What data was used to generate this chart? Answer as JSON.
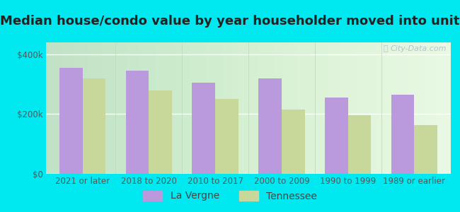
{
  "title": "Median house/condo value by year householder moved into unit",
  "categories": [
    "2021 or later",
    "2018 to 2020",
    "2010 to 2017",
    "2000 to 2009",
    "1990 to 1999",
    "1989 or earlier"
  ],
  "la_vergne": [
    355000,
    345000,
    305000,
    320000,
    255000,
    265000
  ],
  "tennessee": [
    320000,
    280000,
    250000,
    215000,
    197000,
    163000
  ],
  "bar_color_lavergne": "#bb99dd",
  "bar_color_tennessee": "#c8d89a",
  "background_color": "#00e8f0",
  "ytick_labels": [
    "$0",
    "$200k",
    "$400k"
  ],
  "ytick_values": [
    0,
    200000,
    400000
  ],
  "ylim": [
    0,
    440000
  ],
  "legend_lavergne": "La Vergne",
  "legend_tennessee": "Tennessee",
  "watermark": "City-Data.com",
  "title_fontsize": 13,
  "tick_fontsize": 8.5,
  "legend_fontsize": 10
}
